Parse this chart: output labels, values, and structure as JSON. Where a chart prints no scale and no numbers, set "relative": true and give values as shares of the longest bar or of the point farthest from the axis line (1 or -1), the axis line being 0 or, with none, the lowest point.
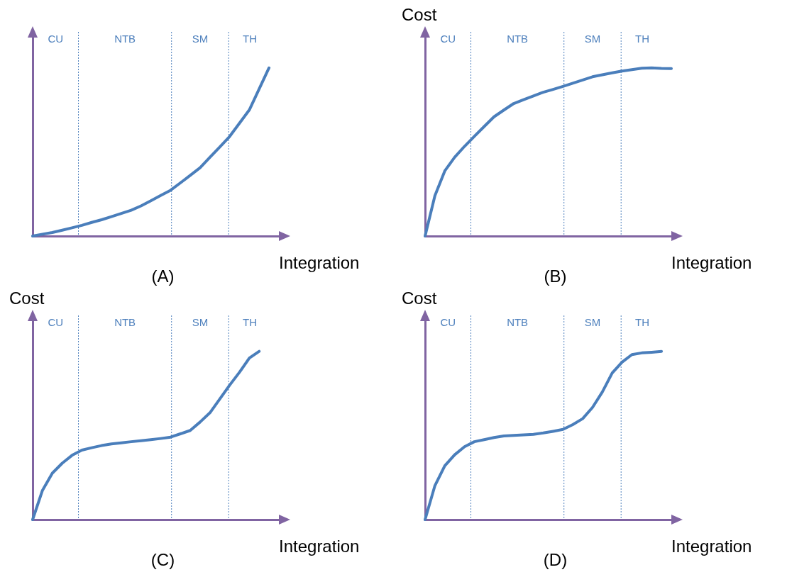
{
  "chart_data": [
    {
      "type": "line",
      "title": "(A)",
      "xlabel": "Integration",
      "relative": true,
      "marker": "none",
      "line_style": "solid",
      "annotations": [
        "CU",
        "NTB",
        "SM",
        "TH"
      ],
      "categories": [
        null,
        null,
        null,
        null,
        null,
        null,
        null,
        null,
        null,
        null,
        null,
        null,
        null,
        null,
        null,
        null,
        null,
        null,
        null,
        null,
        null,
        null,
        null,
        null,
        null,
        null
      ],
      "series": [
        {
          "color": "#4a7ebb",
          "values": [
            0,
            0.011,
            0.021,
            0.035,
            0.049,
            0.064,
            0.081,
            0.097,
            0.115,
            0.134,
            0.153,
            0.179,
            0.21,
            0.241,
            0.272,
            0.316,
            0.361,
            0.406,
            0.468,
            0.529,
            0.592,
            0.671,
            0.75,
            0.875,
            1,
            null
          ]
        }
      ]
    },
    {
      "type": "line",
      "title": "(B)",
      "xlabel": "Integration",
      "ylabel": "Cost",
      "relative": true,
      "marker": "none",
      "line_style": "solid",
      "annotations": [
        "CU",
        "NTB",
        "SM",
        "TH"
      ],
      "categories": [
        null,
        null,
        null,
        null,
        null,
        null,
        null,
        null,
        null,
        null,
        null,
        null,
        null,
        null,
        null,
        null,
        null,
        null,
        null,
        null,
        null,
        null,
        null,
        null,
        null,
        null
      ],
      "series": [
        {
          "color": "#4a7ebb",
          "values": [
            0,
            0.24,
            0.387,
            0.468,
            0.533,
            0.593,
            0.651,
            0.709,
            0.749,
            0.788,
            0.811,
            0.833,
            0.855,
            0.872,
            0.89,
            0.909,
            0.928,
            0.947,
            0.959,
            0.97,
            0.981,
            0.989,
            0.998,
            1,
            0.997,
            0.996
          ]
        }
      ]
    },
    {
      "type": "line",
      "title": "(C)",
      "xlabel": "Integration",
      "ylabel": "Cost",
      "relative": true,
      "marker": "none",
      "line_style": "solid",
      "annotations": [
        "CU",
        "NTB",
        "SM",
        "TH"
      ],
      "categories": [
        null,
        null,
        null,
        null,
        null,
        null,
        null,
        null,
        null,
        null,
        null,
        null,
        null,
        null,
        null,
        null,
        null,
        null,
        null,
        null,
        null,
        null,
        null,
        null,
        null,
        null
      ],
      "series": [
        {
          "color": "#4a7ebb",
          "values": [
            0,
            0.174,
            0.276,
            0.335,
            0.382,
            0.413,
            0.427,
            0.44,
            0.45,
            0.456,
            0.463,
            0.469,
            0.475,
            0.482,
            0.49,
            0.51,
            0.53,
            0.58,
            0.635,
            0.717,
            0.799,
            0.876,
            0.96,
            1,
            null,
            null
          ]
        }
      ]
    },
    {
      "type": "line",
      "title": "(D)",
      "xlabel": "Integration",
      "ylabel": "Cost",
      "relative": true,
      "marker": "none",
      "line_style": "solid",
      "annotations": [
        "CU",
        "NTB",
        "SM",
        "TH"
      ],
      "categories": [
        null,
        null,
        null,
        null,
        null,
        null,
        null,
        null,
        null,
        null,
        null,
        null,
        null,
        null,
        null,
        null,
        null,
        null,
        null,
        null,
        null,
        null,
        null,
        null,
        null,
        null
      ],
      "series": [
        {
          "color": "#4a7ebb",
          "values": [
            0,
            0.202,
            0.32,
            0.385,
            0.433,
            0.463,
            0.475,
            0.488,
            0.497,
            0.5,
            0.504,
            0.507,
            0.515,
            0.525,
            0.536,
            0.565,
            0.6,
            0.667,
            0.759,
            0.872,
            0.936,
            0.981,
            0.991,
            0.995,
            1,
            null
          ]
        }
      ]
    }
  ]
}
